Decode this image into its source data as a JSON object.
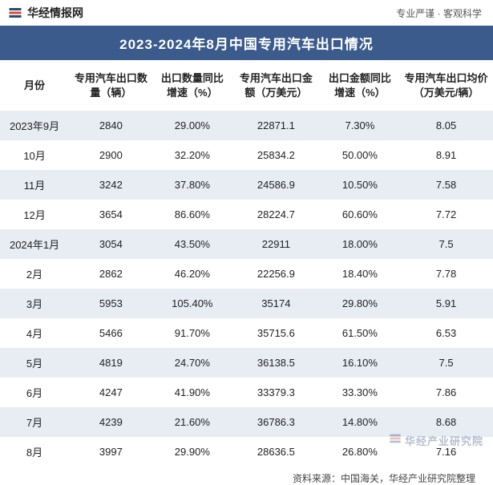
{
  "header": {
    "brand": "华经情报网",
    "tagline_left": "专业严谨",
    "tagline_sep": "·",
    "tagline_right": "客观科学"
  },
  "title": "2023-2024年8月中国专用汽车出口情况",
  "table": {
    "columns": [
      "月份",
      "专用汽车出口数量（辆）",
      "出口数量同比增速（%）",
      "专用汽车出口金额（万美元）",
      "出口金额同比增速（%）",
      "专用汽车出口均价（万美元/辆）"
    ],
    "col_widths_pct": [
      14,
      17,
      16,
      18,
      16,
      19
    ],
    "header_fontsize": 13,
    "cell_fontsize": 13,
    "shaded_row_color": "#e8ecf3",
    "rows": [
      {
        "month": "2023年9月",
        "qty": "2840",
        "qty_yoy": "29.00%",
        "amt": "22871.1",
        "amt_yoy": "7.30%",
        "avg": "8.05"
      },
      {
        "month": "10月",
        "qty": "2900",
        "qty_yoy": "32.20%",
        "amt": "25834.2",
        "amt_yoy": "50.00%",
        "avg": "8.91"
      },
      {
        "month": "11月",
        "qty": "3242",
        "qty_yoy": "37.80%",
        "amt": "24586.9",
        "amt_yoy": "10.50%",
        "avg": "7.58"
      },
      {
        "month": "12月",
        "qty": "3654",
        "qty_yoy": "86.60%",
        "amt": "28224.7",
        "amt_yoy": "60.60%",
        "avg": "7.72"
      },
      {
        "month": "2024年1月",
        "qty": "3054",
        "qty_yoy": "43.50%",
        "amt": "22911",
        "amt_yoy": "18.00%",
        "avg": "7.5"
      },
      {
        "month": "2月",
        "qty": "2862",
        "qty_yoy": "46.20%",
        "amt": "22256.9",
        "amt_yoy": "18.40%",
        "avg": "7.78"
      },
      {
        "month": "3月",
        "qty": "5953",
        "qty_yoy": "105.40%",
        "amt": "35174",
        "amt_yoy": "29.80%",
        "avg": "5.91"
      },
      {
        "month": "4月",
        "qty": "5466",
        "qty_yoy": "91.70%",
        "amt": "35715.6",
        "amt_yoy": "61.50%",
        "avg": "6.53"
      },
      {
        "month": "5月",
        "qty": "4819",
        "qty_yoy": "24.70%",
        "amt": "36138.5",
        "amt_yoy": "16.10%",
        "avg": "7.5"
      },
      {
        "month": "6月",
        "qty": "4247",
        "qty_yoy": "41.90%",
        "amt": "33379.3",
        "amt_yoy": "33.30%",
        "avg": "7.86"
      },
      {
        "month": "7月",
        "qty": "4239",
        "qty_yoy": "21.60%",
        "amt": "36786.3",
        "amt_yoy": "14.80%",
        "avg": "8.68"
      },
      {
        "month": "8月",
        "qty": "3997",
        "qty_yoy": "29.90%",
        "amt": "28636.5",
        "amt_yoy": "26.80%",
        "avg": "7.16"
      }
    ]
  },
  "source_line": "资料来源：中国海关，华经产业研究院整理",
  "watermark": {
    "text": "华经产业研究院"
  },
  "colors": {
    "title_bg": "#3b5b8c",
    "title_fg": "#ffffff",
    "row_shade": "#e8ecf3",
    "text": "#222222",
    "brand_blue": "#2a4a7a",
    "brand_accent": "#d94a2b"
  }
}
